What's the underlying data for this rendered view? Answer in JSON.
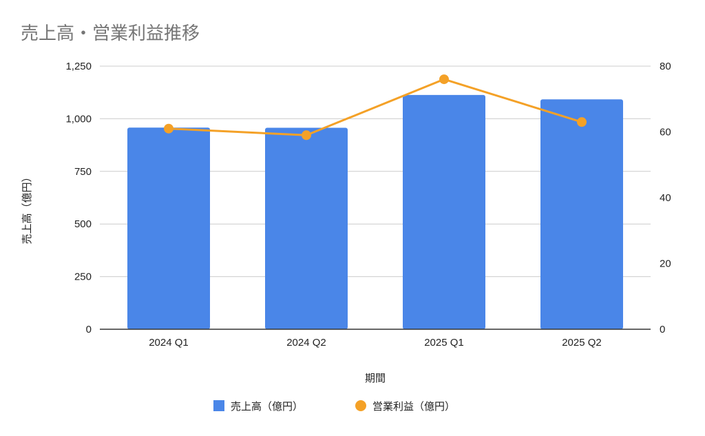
{
  "chart_data": {
    "type": "bar",
    "title": "売上高・営業利益推移",
    "categories": [
      "2024 Q1",
      "2024 Q2",
      "2025 Q1",
      "2025 Q2"
    ],
    "series": [
      {
        "name": "売上高（億円）",
        "type": "bar",
        "axis": "left",
        "color": "#4a86e8",
        "values": [
          958,
          957,
          1113,
          1092
        ]
      },
      {
        "name": "営業利益（億円）",
        "type": "line",
        "axis": "right",
        "color": "#f4a127",
        "values": [
          61,
          59,
          76,
          63
        ]
      }
    ],
    "xlabel": "期間",
    "ylabel": "売上高（億円）",
    "ylim": [
      0,
      1250
    ],
    "y_ticks": [
      "0",
      "250",
      "500",
      "750",
      "1,000",
      "1,250"
    ],
    "y2lim": [
      0,
      80
    ],
    "y2_ticks": [
      "0",
      "20",
      "40",
      "60",
      "80"
    ],
    "grid": true,
    "legend_position": "bottom"
  }
}
